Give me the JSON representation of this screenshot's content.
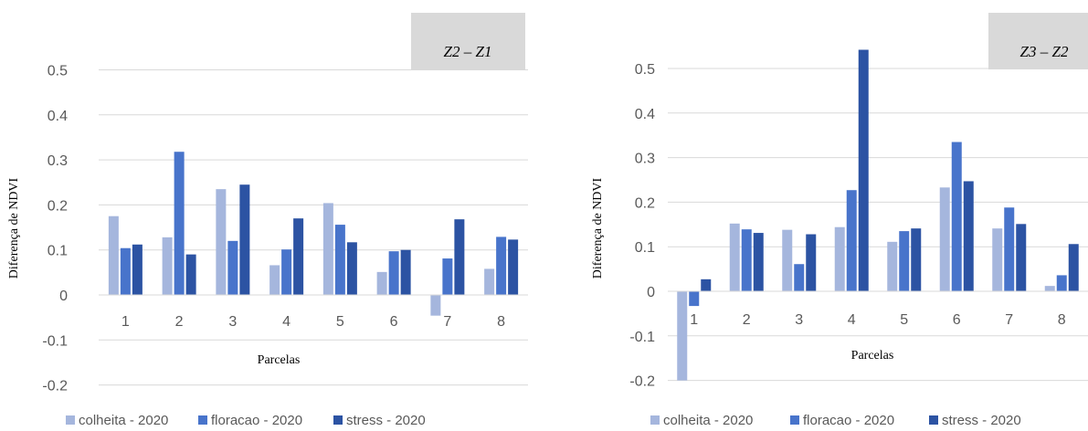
{
  "colors": {
    "colheita": "#A5B6DD",
    "floracao": "#4874CB",
    "stress": "#2C53A3",
    "grid": "#D9D9D9",
    "annotation_box": "#D9D9D9"
  },
  "chart_data": [
    {
      "type": "bar",
      "annotation": "Z2 – Z1",
      "xlabel": "Parcelas",
      "ylabel": "Diferença de NDVI",
      "categories": [
        "1",
        "2",
        "3",
        "4",
        "5",
        "6",
        "7",
        "8"
      ],
      "ylim": [
        -0.2,
        0.5
      ],
      "yticks": [
        "-0.2",
        "-0.1",
        "0",
        "0.1",
        "0.2",
        "0.3",
        "0.4",
        "0.5"
      ],
      "grid": "horizontal",
      "legend_position": "bottom",
      "series": [
        {
          "name": "colheita - 2020",
          "color_key": "colheita",
          "values": [
            0.175,
            0.128,
            0.235,
            0.066,
            0.204,
            0.051,
            -0.046,
            0.058
          ]
        },
        {
          "name": "floracao - 2020",
          "color_key": "floracao",
          "values": [
            0.104,
            0.318,
            0.12,
            0.101,
            0.156,
            0.097,
            0.081,
            0.129
          ]
        },
        {
          "name": "stress - 2020",
          "color_key": "stress",
          "values": [
            0.112,
            0.09,
            0.245,
            0.17,
            0.117,
            0.1,
            0.168,
            0.123
          ]
        }
      ]
    },
    {
      "type": "bar",
      "annotation": "Z3 – Z2",
      "xlabel": "Parcelas",
      "ylabel": "Diferença de NDVI",
      "categories": [
        "1",
        "2",
        "3",
        "4",
        "5",
        "6",
        "7",
        "8"
      ],
      "ylim": [
        -0.2,
        0.5
      ],
      "yticks": [
        "-0.2",
        "-0.1",
        "0",
        "0.1",
        "0.2",
        "0.3",
        "0.4",
        "0.5"
      ],
      "grid": "horizontal",
      "legend_position": "bottom",
      "series": [
        {
          "name": "colheita - 2020",
          "color_key": "colheita",
          "values": [
            -0.2,
            0.152,
            0.138,
            0.144,
            0.111,
            0.233,
            0.141,
            0.012
          ]
        },
        {
          "name": "floracao - 2020",
          "color_key": "floracao",
          "values": [
            -0.033,
            0.139,
            0.061,
            0.227,
            0.135,
            0.335,
            0.188,
            0.036
          ]
        },
        {
          "name": "stress - 2020",
          "color_key": "stress",
          "values": [
            0.027,
            0.131,
            0.128,
            0.542,
            0.141,
            0.247,
            0.151,
            0.106
          ]
        }
      ]
    }
  ]
}
